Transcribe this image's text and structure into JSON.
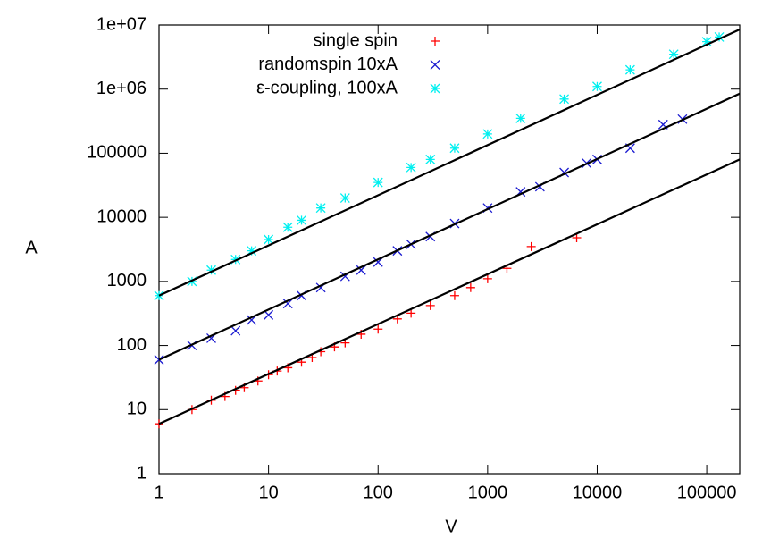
{
  "chart_data": {
    "type": "scatter",
    "log_x": true,
    "log_y": true,
    "x_label": "V",
    "y_label": "A",
    "xlim": [
      1,
      200000
    ],
    "xticks": [
      1,
      10,
      100,
      1000,
      10000,
      100000
    ],
    "ylim": [
      1,
      10000000
    ],
    "yticks": [
      1,
      10,
      100,
      1000,
      10000,
      100000,
      {
        "value": 1000000,
        "label": "1e+06"
      },
      {
        "value": 10000000,
        "label": "1e+07"
      }
    ],
    "legend": "top-left",
    "series": [
      {
        "name": "single spin",
        "color": "#ff0000",
        "marker": "plus",
        "x": [
          1,
          2,
          3,
          4,
          5,
          6,
          8,
          10,
          12,
          15,
          20,
          25,
          30,
          40,
          50,
          70,
          100,
          150,
          200,
          300,
          500,
          700,
          1000,
          1500,
          2500,
          6500
        ],
        "values": [
          6,
          10,
          14,
          16,
          20,
          22,
          28,
          35,
          40,
          45,
          55,
          65,
          80,
          95,
          110,
          150,
          180,
          260,
          320,
          420,
          600,
          800,
          1100,
          1600,
          3500,
          4800
        ]
      },
      {
        "name": "randomspin 10xA",
        "color": "#1a1ad0",
        "marker": "cross",
        "x": [
          1,
          2,
          3,
          5,
          7,
          10,
          15,
          20,
          30,
          50,
          70,
          100,
          150,
          200,
          300,
          500,
          1000,
          2000,
          3000,
          5000,
          8000,
          10000,
          20000,
          40000,
          60000
        ],
        "values": [
          60,
          100,
          130,
          170,
          250,
          300,
          450,
          600,
          800,
          1200,
          1500,
          2000,
          3000,
          3800,
          5000,
          8000,
          14000,
          25000,
          30000,
          50000,
          70000,
          80000,
          120000,
          280000,
          340000
        ]
      },
      {
        "name": "ε-coupling, 100xA",
        "color": "#00f0f0",
        "marker": "star",
        "x": [
          1,
          2,
          3,
          5,
          7,
          10,
          15,
          20,
          30,
          50,
          100,
          200,
          300,
          500,
          1000,
          2000,
          5000,
          10000,
          20000,
          50000,
          100000,
          130000
        ],
        "values": [
          600,
          1000,
          1500,
          2200,
          3000,
          4500,
          7000,
          9000,
          14000,
          20000,
          35000,
          60000,
          80000,
          120000,
          200000,
          350000,
          700000,
          1100000,
          2000000,
          3500000,
          5500000,
          6500000
        ]
      }
    ],
    "fit_lines": [
      {
        "color": "#000000",
        "x": [
          1,
          200000
        ],
        "values": [
          6,
          80000
        ]
      },
      {
        "color": "#000000",
        "x": [
          1,
          200000
        ],
        "values": [
          60,
          850000
        ]
      },
      {
        "color": "#000000",
        "x": [
          1,
          200000
        ],
        "values": [
          600,
          8500000
        ]
      }
    ]
  }
}
